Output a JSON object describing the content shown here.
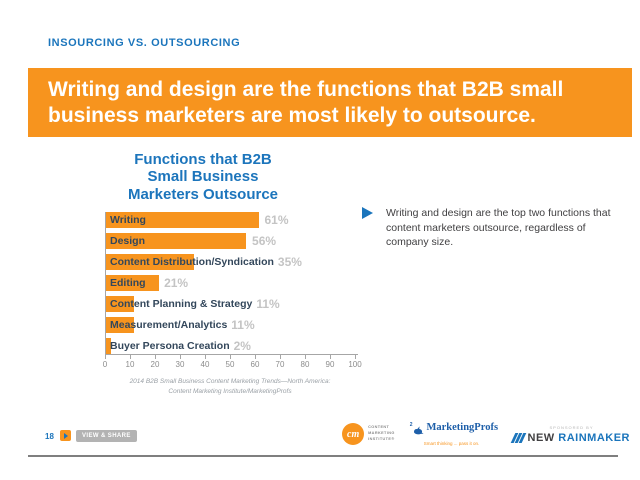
{
  "header": {
    "eyebrow": "INSOURCING VS. OUTSOURCING"
  },
  "banner": {
    "text": "Writing and design are the functions that B2B small business marketers are most likely to outsource."
  },
  "chart": {
    "title_lines": [
      "Functions that B2B",
      "Small Business",
      "Marketers Outsource"
    ],
    "source_lines": [
      "2014 B2B Small Business Content Marketing Trends—North America:",
      "Content Marketing Institute/MarketingProfs"
    ]
  },
  "chart_data": {
    "type": "bar",
    "orientation": "horizontal",
    "title": "Functions that B2B Small Business Marketers Outsource",
    "categories": [
      "Writing",
      "Design",
      "Content Distribution/Syndication",
      "Editing",
      "Content Planning & Strategy",
      "Measurement/Analytics",
      "Buyer Persona Creation"
    ],
    "values": [
      61,
      56,
      35,
      21,
      11,
      11,
      2
    ],
    "value_labels": [
      "61%",
      "56%",
      "35%",
      "21%",
      "11%",
      "11%",
      "2%"
    ],
    "xlabel": "",
    "ylabel": "",
    "xlim": [
      0,
      100
    ],
    "x_ticks": [
      0,
      10,
      20,
      30,
      40,
      50,
      60,
      70,
      80,
      90,
      100
    ],
    "grid": false,
    "legend": "none",
    "bar_color": "#f7941e",
    "category_label_color": "#33475b",
    "value_label_color": "#c4c4c4",
    "source": "2014 B2B Small Business Content Marketing Trends—North America: Content Marketing Institute/MarketingProfs"
  },
  "callout": {
    "text": "Writing and design are the top two functions that content marketers outsource, regardless of company size."
  },
  "footer": {
    "page_number": "18",
    "view_share_label": "VIEW & SHARE",
    "logos": {
      "cmi": {
        "monogram": "cm",
        "line1": "CONTENT",
        "line2": "MARKETING",
        "line3": "INSTITUTE®"
      },
      "marketingprofs": {
        "sup": "2",
        "name": "MarketingProfs",
        "tagline": "Smart thinking ... pass it on."
      },
      "sponsor": {
        "eyebrow": "SPONSORED BY",
        "name_first": "NEW",
        "name_second": "RAINMAKER"
      }
    }
  },
  "colors": {
    "accent_orange": "#f7941e",
    "brand_blue": "#1b75bc",
    "navy_label": "#33475b",
    "gray_value": "#c4c4c4",
    "footer_line": "#7f7f7f"
  }
}
